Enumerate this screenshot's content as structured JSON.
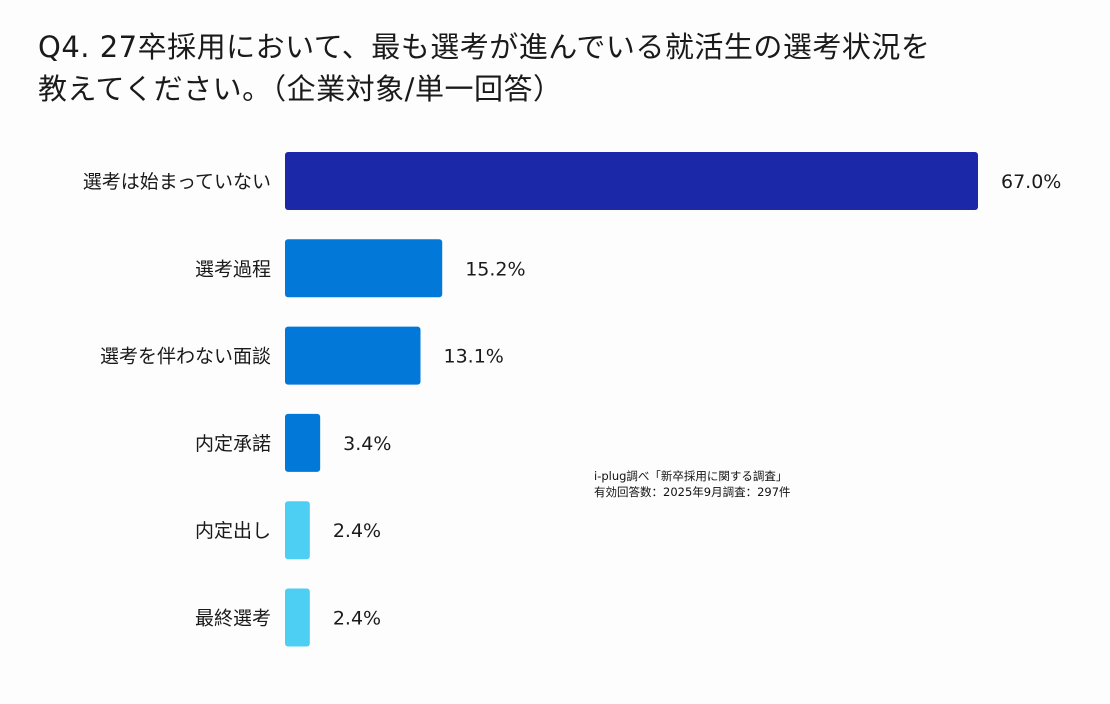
{
  "chart_data": {
    "type": "bar",
    "orientation": "horizontal",
    "title_line1": "Q4. 27卒採用において、最も選考が進んでいる就活生の選考状況を",
    "title_line2": "教えてください。（企業対象/単一回答）",
    "categories": [
      "選考は始まっていない",
      "選考過程",
      "選考を伴わない面談",
      "内定承諾",
      "内定出し",
      "最終選考"
    ],
    "values": [
      67.0,
      15.2,
      13.1,
      3.4,
      2.4,
      2.4
    ],
    "value_labels": [
      "67.0%",
      "15.2%",
      "13.1%",
      "3.4%",
      "2.4%",
      "2.4%"
    ],
    "colors": [
      "#1b28a8",
      "#0278d8",
      "#0278d8",
      "#0278d8",
      "#4ccff2",
      "#4ccff2"
    ],
    "xlim": [
      0,
      67
    ],
    "grid": false,
    "source_line1": "i-plug調べ「新卒採用に関する調査」",
    "source_line2": "有効回答数：2025年9月調査：297件"
  }
}
